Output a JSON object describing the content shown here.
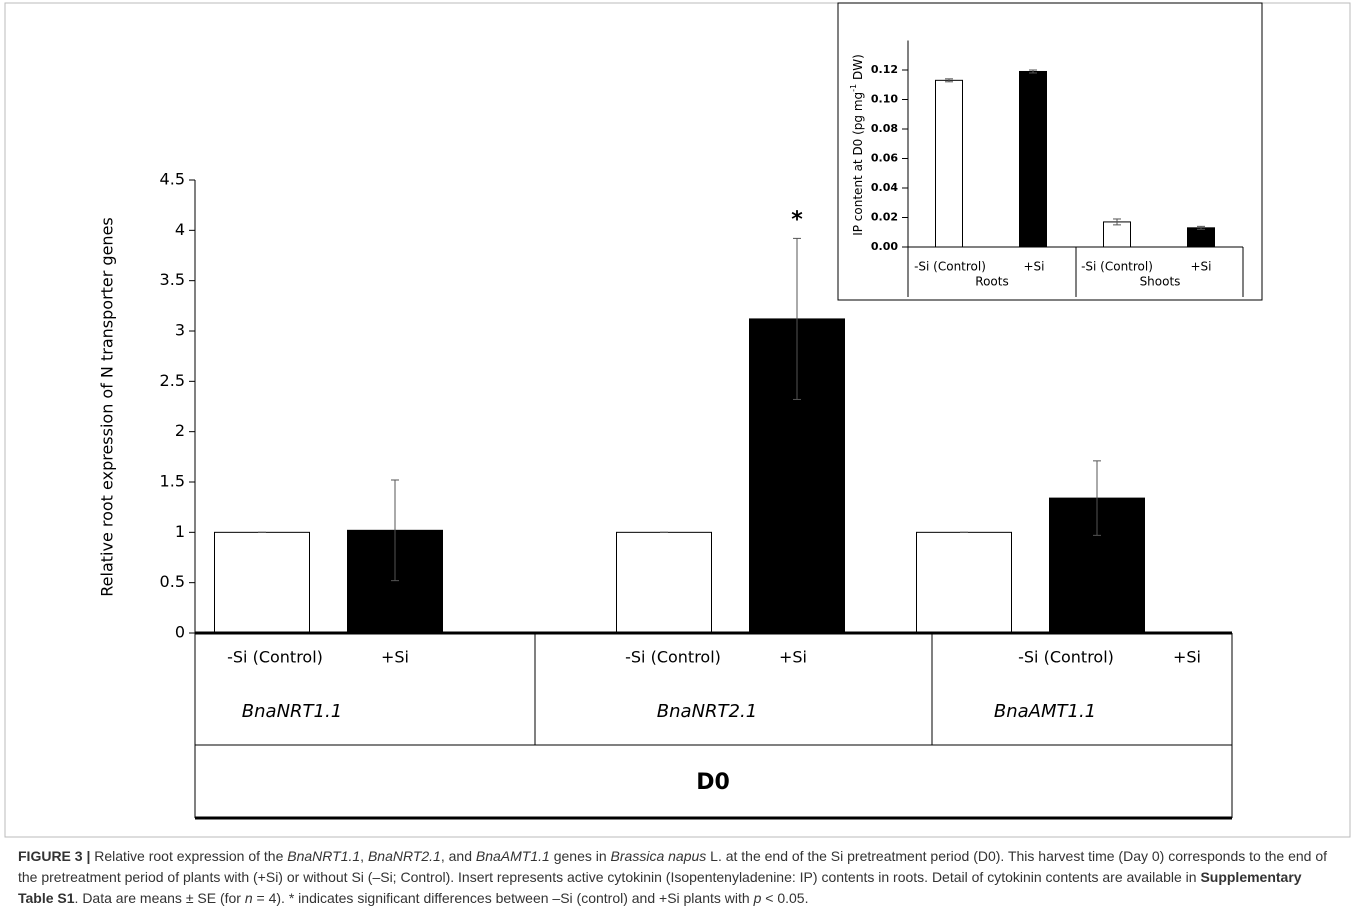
{
  "chart_data": [
    {
      "type": "bar",
      "y_label": "Relative root expression of N transporter genes",
      "categories": [
        "BnaNRT1.1",
        "BnaNRT2.1",
        "BnaAMT1.1"
      ],
      "group_label": "D0",
      "series": [
        {
          "name": "-Si (Control)",
          "color": "#ffffff",
          "values": [
            1,
            1,
            1
          ],
          "errors": [
            0,
            0,
            0
          ]
        },
        {
          "name": "+Si",
          "color": "#000000",
          "values": [
            1.02,
            3.12,
            1.34
          ],
          "errors": [
            0.5,
            0.8,
            0.37
          ]
        }
      ],
      "annotations": [
        {
          "text": "*",
          "series": 1,
          "index": 1
        }
      ],
      "ylim": [
        0,
        4.5
      ],
      "yticks": [
        0,
        0.5,
        1,
        1.5,
        2,
        2.5,
        3,
        3.5,
        4,
        4.5
      ]
    },
    {
      "type": "bar",
      "y_label": [
        "IP content at D0 (pg mg",
        "-1",
        " DW)"
      ],
      "categories": [
        "Roots",
        "Shoots"
      ],
      "series": [
        {
          "name": "-Si (Control)",
          "color": "#ffffff",
          "values": [
            0.113,
            0.017
          ],
          "errors": [
            0.001,
            0.002
          ]
        },
        {
          "name": "+Si",
          "color": "#000000",
          "values": [
            0.119,
            0.013
          ],
          "errors": [
            0.001,
            0.001
          ]
        }
      ],
      "ylim": [
        0,
        0.14
      ],
      "yticks": [
        {
          "value": 0,
          "label": "0.00"
        },
        0.02,
        0.04,
        0.06,
        0.08,
        {
          "value": 0.1,
          "label": "0.10"
        },
        0.12
      ]
    }
  ],
  "caption": [
    "FIGURE 3 |",
    " Relative root expression of the ",
    "BnaNRT1.1",
    ", ",
    "BnaNRT2.1",
    ", and ",
    "BnaAMT1.1",
    " genes in ",
    "Brassica napus",
    " L. at the end of the Si pretreatment period (D0). This harvest time (Day 0) corresponds to the end of the pretreatment period of plants with (+Si) or without Si (–Si; Control). Insert represents active cytokinin (Isopentenyladenine: IP) contents in roots. Detail of cytokinin contents are available in ",
    "Supplementary Table S1",
    ". Data are means ± SE (for ",
    "n",
    " = 4). * indicates significant differences between –Si (control) and +Si plants with ",
    "p",
    " < 0.05."
  ]
}
